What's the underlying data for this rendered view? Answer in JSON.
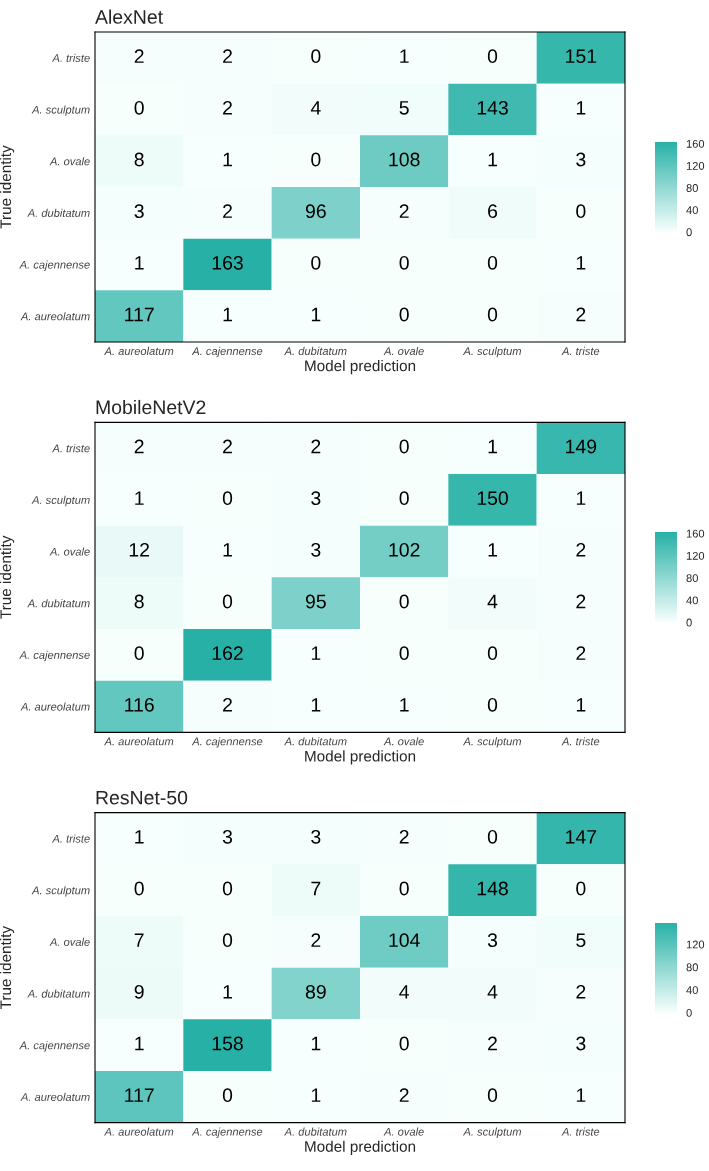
{
  "chart_data": [
    {
      "type": "heatmap",
      "title": "AlexNet",
      "xlabel": "Model prediction",
      "ylabel": "True identity",
      "categories": [
        "A. aureolatum",
        "A. cajennense",
        "A. dubitatum",
        "A. ovale",
        "A. sculptum",
        "A. triste"
      ],
      "y_categories": [
        "A. triste",
        "A. sculptum",
        "A. ovale",
        "A. dubitatum",
        "A. cajennense",
        "A. aureolatum"
      ],
      "cells": [
        [
          2,
          2,
          0,
          1,
          0,
          151
        ],
        [
          0,
          2,
          4,
          5,
          143,
          1
        ],
        [
          8,
          1,
          0,
          108,
          1,
          3
        ],
        [
          3,
          2,
          96,
          2,
          6,
          0
        ],
        [
          1,
          163,
          0,
          0,
          0,
          1
        ],
        [
          117,
          1,
          1,
          0,
          0,
          2
        ]
      ],
      "clim": [
        0,
        163
      ],
      "cticks": [
        0,
        40,
        80,
        120,
        160
      ],
      "colors": [
        "#f7fffd",
        "#27b1a6"
      ],
      "data_labels": true,
      "grid": false
    },
    {
      "type": "heatmap",
      "title": "MobileNetV2",
      "xlabel": "Model prediction",
      "ylabel": "True identity",
      "categories": [
        "A. aureolatum",
        "A. cajennense",
        "A. dubitatum",
        "A. ovale",
        "A. sculptum",
        "A. triste"
      ],
      "y_categories": [
        "A. triste",
        "A. sculptum",
        "A. ovale",
        "A. dubitatum",
        "A. cajennense",
        "A. aureolatum"
      ],
      "cells": [
        [
          2,
          2,
          2,
          0,
          1,
          149
        ],
        [
          1,
          0,
          3,
          0,
          150,
          1
        ],
        [
          12,
          1,
          3,
          102,
          1,
          2
        ],
        [
          8,
          0,
          95,
          0,
          4,
          2
        ],
        [
          0,
          162,
          1,
          0,
          0,
          2
        ],
        [
          116,
          2,
          1,
          1,
          0,
          1
        ]
      ],
      "clim": [
        0,
        162
      ],
      "cticks": [
        0,
        40,
        80,
        120,
        160
      ],
      "colors": [
        "#f7fffd",
        "#27b1a6"
      ],
      "data_labels": true,
      "grid": false
    },
    {
      "type": "heatmap",
      "title": "ResNet-50",
      "xlabel": "Model prediction",
      "ylabel": "True identity",
      "categories": [
        "A. aureolatum",
        "A. cajennense",
        "A. dubitatum",
        "A. ovale",
        "A. sculptum",
        "A. triste"
      ],
      "y_categories": [
        "A. triste",
        "A. sculptum",
        "A. ovale",
        "A. dubitatum",
        "A. cajennense",
        "A. aureolatum"
      ],
      "cells": [
        [
          1,
          3,
          3,
          2,
          0,
          147
        ],
        [
          0,
          0,
          7,
          0,
          148,
          0
        ],
        [
          7,
          0,
          2,
          104,
          3,
          5
        ],
        [
          9,
          1,
          89,
          4,
          4,
          2
        ],
        [
          1,
          158,
          1,
          0,
          2,
          3
        ],
        [
          117,
          0,
          1,
          2,
          0,
          1
        ]
      ],
      "clim": [
        0,
        158
      ],
      "cticks": [
        0,
        40,
        80,
        120
      ],
      "colors": [
        "#f7fffd",
        "#27b1a6"
      ],
      "data_labels": true,
      "grid": false
    }
  ]
}
